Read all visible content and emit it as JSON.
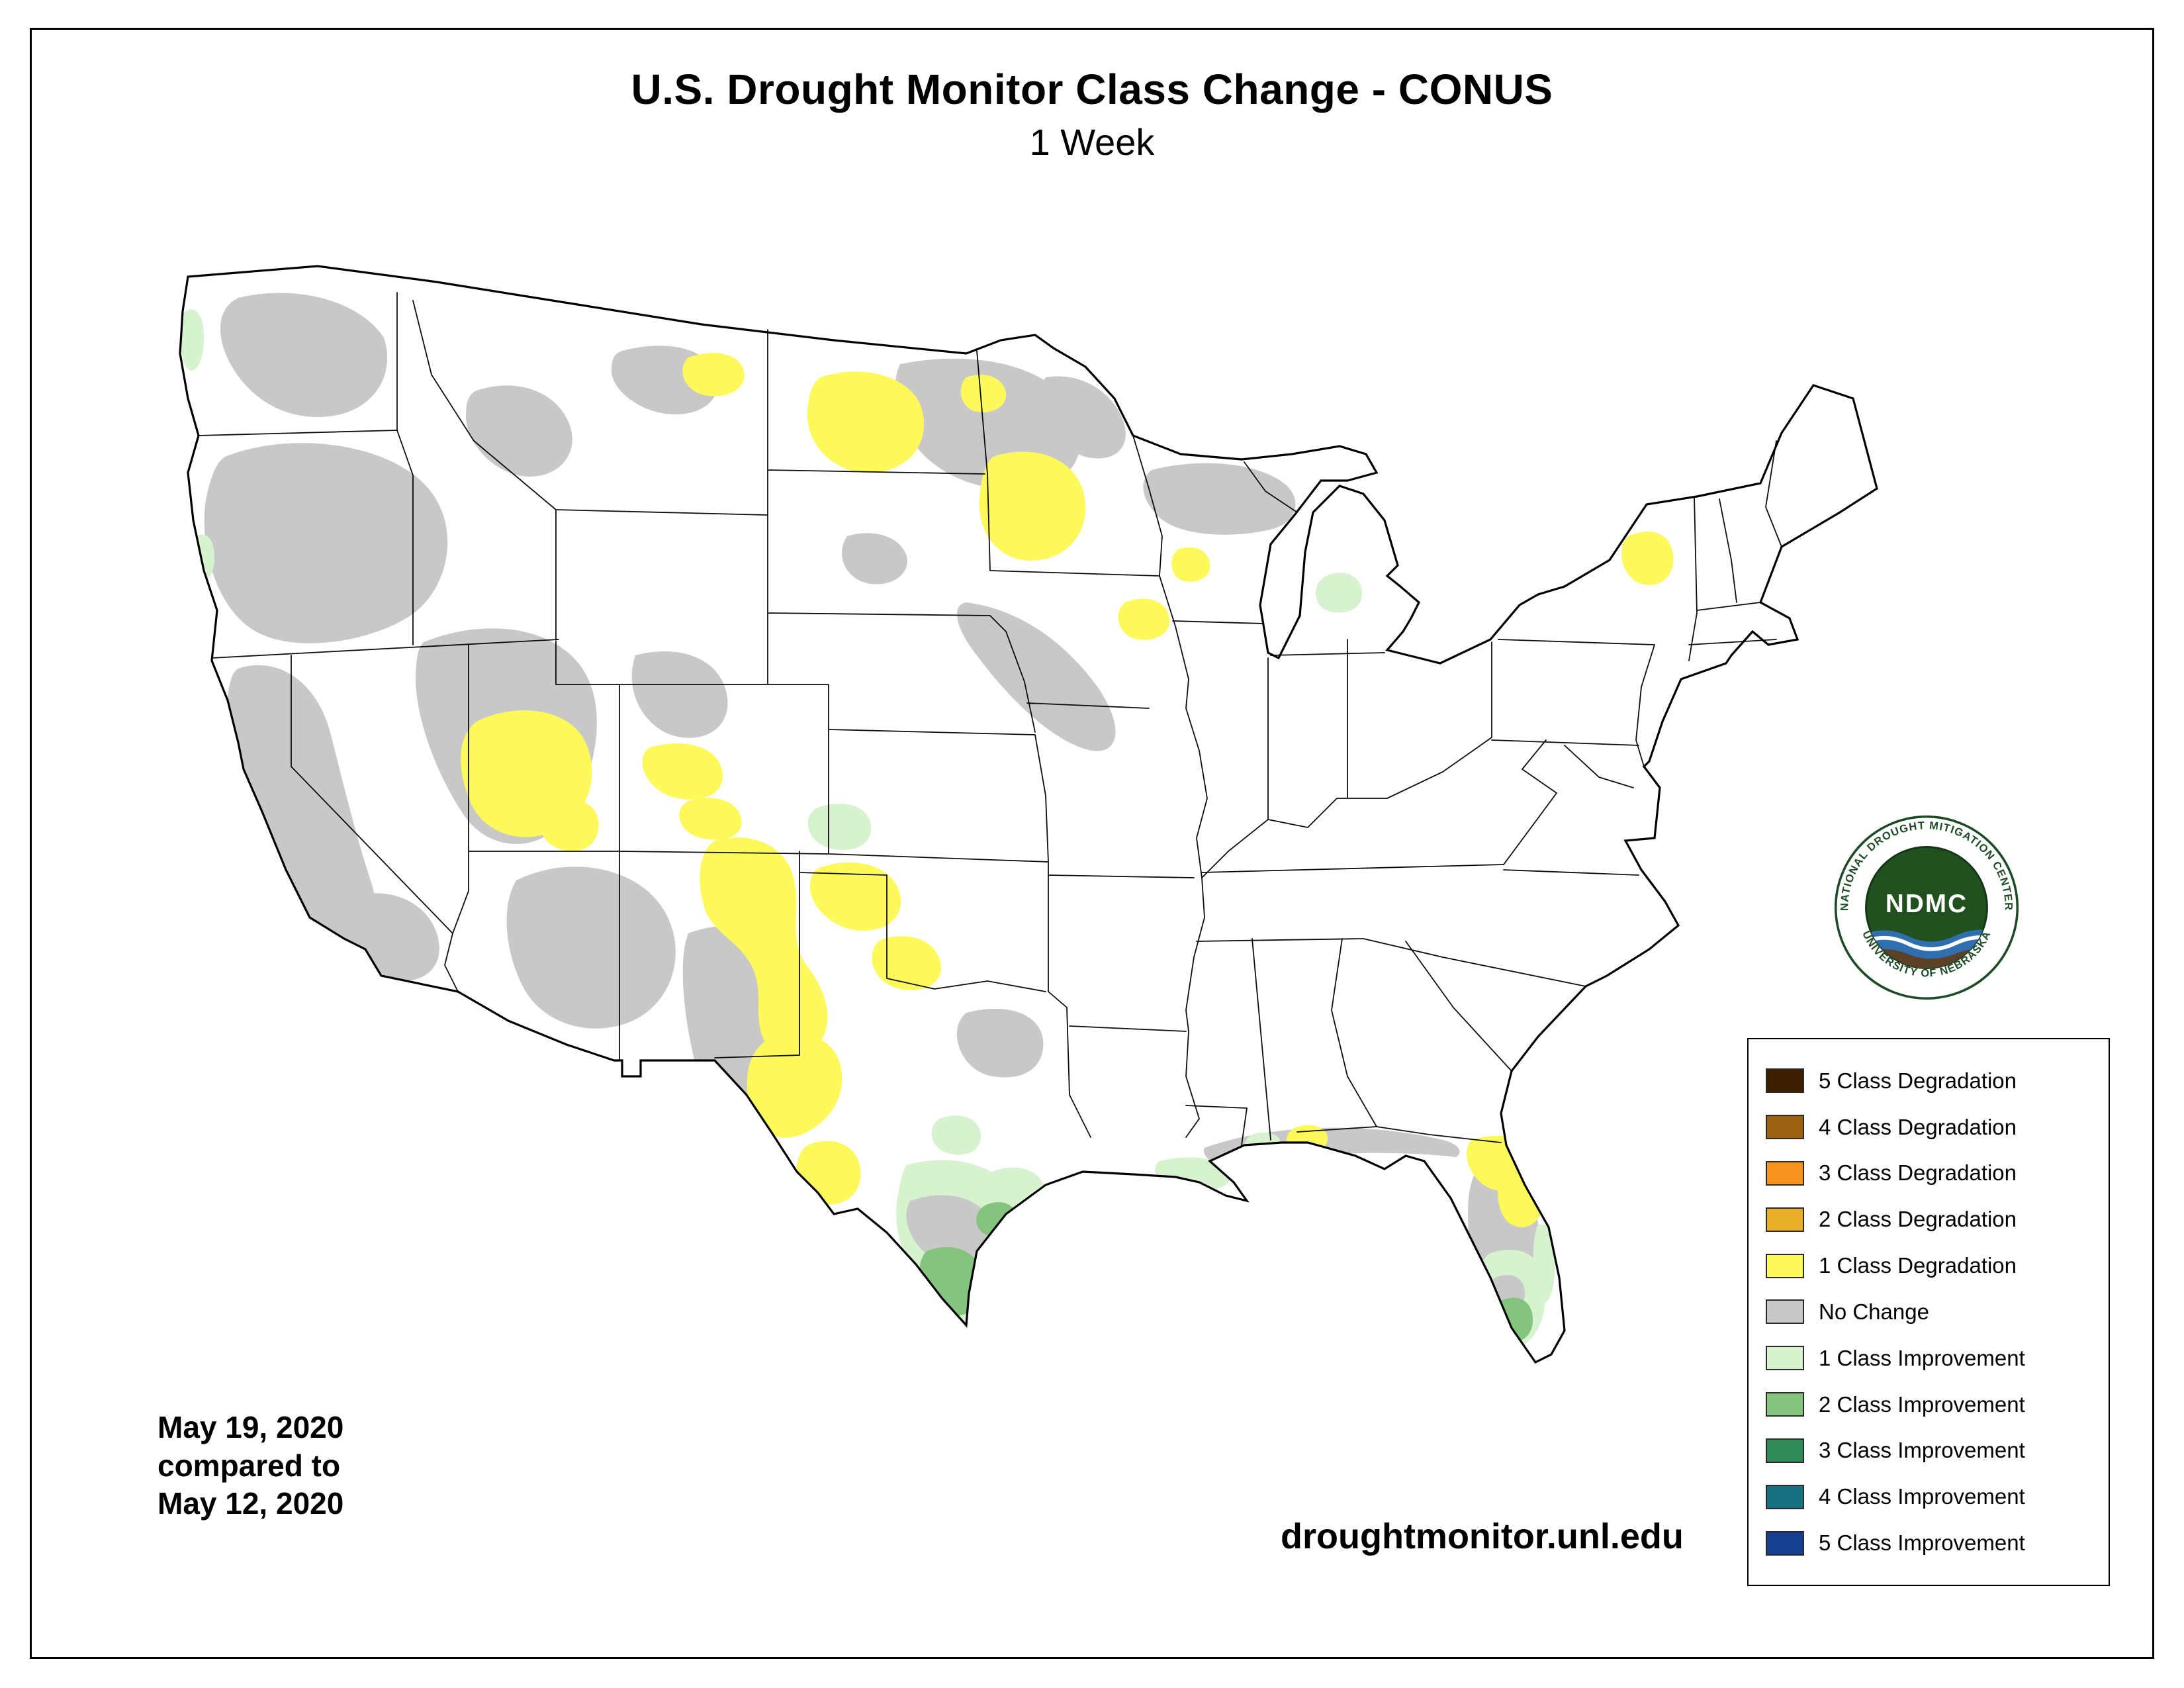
{
  "header": {
    "title": "U.S. Drought Monitor Class Change - CONUS",
    "subtitle": "1 Week"
  },
  "footer": {
    "date_line1": "May 19, 2020",
    "date_line2": "compared to",
    "date_line3": "May 12, 2020",
    "website": "droughtmonitor.unl.edu"
  },
  "logo": {
    "acronym": "NDMC",
    "arc_top": "NATIONAL DROUGHT MITIGATION CENTER",
    "arc_bottom": "UNIVERSITY OF NEBRASKA",
    "ring_color": "#1d4b26",
    "inner_color": "#20511f"
  },
  "legend": {
    "items": [
      {
        "label": "5 Class Degradation",
        "color": "#3d1f00"
      },
      {
        "label": "4 Class Degradation",
        "color": "#9c6011"
      },
      {
        "label": "3 Class Degradation",
        "color": "#f8931d"
      },
      {
        "label": "2 Class Degradation",
        "color": "#e9ae27"
      },
      {
        "label": "1 Class Degradation",
        "color": "#fdf95a"
      },
      {
        "label": "No Change",
        "color": "#c8c8c8"
      },
      {
        "label": "1 Class Improvement",
        "color": "#d6f2cf"
      },
      {
        "label": "2 Class Improvement",
        "color": "#85c47e"
      },
      {
        "label": "3 Class Improvement",
        "color": "#2f8a57"
      },
      {
        "label": "4 Class Improvement",
        "color": "#17707f"
      },
      {
        "label": "5 Class Improvement",
        "color": "#173f8f"
      }
    ]
  },
  "map": {
    "outline_color": "#000000",
    "land_color": "#ffffff"
  }
}
